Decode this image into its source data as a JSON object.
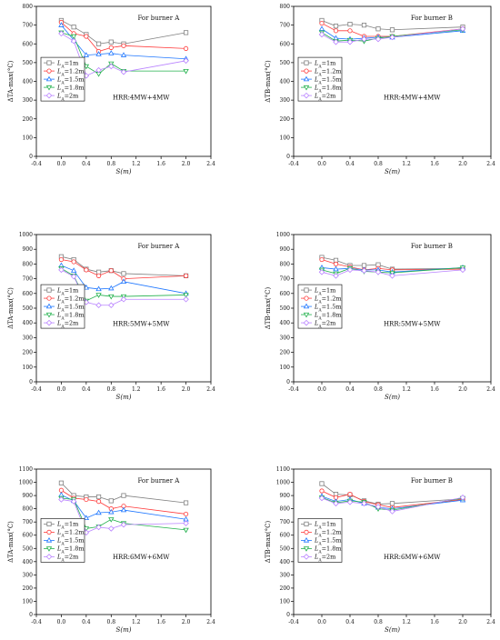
{
  "colors": {
    "LA=1m": "#808080",
    "LA=1.2m": "#ff3b3b",
    "LA=1.5m": "#1f77ff",
    "LA=1.8m": "#22b14c",
    "LA=2m": "#b983ff"
  },
  "legend_labels": [
    "LA=1m",
    "LA=1.2m",
    "LA=1.5m",
    "LA=1.8m",
    "LA=2m"
  ],
  "chart_data": [
    {
      "type": "line",
      "annotation": "For burner A",
      "hrr": "HRR:4MW+4MW",
      "xlabel": "S(m)",
      "ylabel": "ΔTA-max(°C)",
      "xlim": [
        -0.4,
        2.4
      ],
      "ylim": [
        0,
        800
      ],
      "xticks": [
        "-0.4",
        "0.0",
        "0.4",
        "0.8",
        "1.2",
        "1.6",
        "2.0",
        "2.4"
      ],
      "yticks": [
        "0",
        "100",
        "200",
        "300",
        "400",
        "500",
        "600",
        "700",
        "800"
      ],
      "x": [
        0,
        0.2,
        0.4,
        0.6,
        0.8,
        1.0,
        2.0
      ],
      "series": [
        {
          "name": "LA=1m",
          "values": [
            725,
            690,
            650,
            600,
            610,
            600,
            660
          ]
        },
        {
          "name": "LA=1.2m",
          "values": [
            715,
            655,
            640,
            560,
            580,
            590,
            575
          ]
        },
        {
          "name": "LA=1.5m",
          "values": [
            700,
            620,
            540,
            545,
            550,
            540,
            520
          ]
        },
        {
          "name": "LA=1.8m",
          "values": [
            660,
            640,
            480,
            440,
            495,
            455,
            455
          ]
        },
        {
          "name": "LA=2m",
          "values": [
            655,
            615,
            430,
            460,
            480,
            450,
            510
          ]
        }
      ]
    },
    {
      "type": "line",
      "annotation": "For burner B",
      "hrr": "HRR:4MW+4MW",
      "xlabel": "S(m)",
      "ylabel": "ΔTB-max(°C)",
      "xlim": [
        -0.4,
        2.4
      ],
      "ylim": [
        0,
        800
      ],
      "xticks": [
        "-0.4",
        "0.0",
        "0.4",
        "0.8",
        "1.2",
        "1.6",
        "2.0",
        "2.4"
      ],
      "yticks": [
        "0",
        "100",
        "200",
        "300",
        "400",
        "500",
        "600",
        "700",
        "800"
      ],
      "x": [
        0,
        0.2,
        0.4,
        0.6,
        0.8,
        1.0,
        2.0
      ],
      "series": [
        {
          "name": "LA=1m",
          "values": [
            725,
            695,
            705,
            700,
            680,
            675,
            690
          ]
        },
        {
          "name": "LA=1.2m",
          "values": [
            710,
            670,
            670,
            640,
            640,
            640,
            680
          ]
        },
        {
          "name": "LA=1.5m",
          "values": [
            680,
            630,
            625,
            630,
            635,
            635,
            670
          ]
        },
        {
          "name": "LA=1.8m",
          "values": [
            660,
            615,
            620,
            615,
            630,
            640,
            675
          ]
        },
        {
          "name": "LA=2m",
          "values": [
            650,
            610,
            610,
            625,
            625,
            635,
            680
          ]
        }
      ]
    },
    {
      "type": "line",
      "annotation": "For burner A",
      "hrr": "HRR:5MW+5MW",
      "xlabel": "S(m)",
      "ylabel": "ΔTA-max(°C)",
      "xlim": [
        -0.4,
        2.4
      ],
      "ylim": [
        0,
        1000
      ],
      "xticks": [
        "-0.4",
        "0.0",
        "0.4",
        "0.8",
        "1.2",
        "1.6",
        "2.0",
        "2.4"
      ],
      "yticks": [
        "0",
        "100",
        "200",
        "300",
        "400",
        "500",
        "600",
        "700",
        "800",
        "900",
        "1000"
      ],
      "x": [
        0,
        0.2,
        0.4,
        0.6,
        0.8,
        1.0,
        2.0
      ],
      "series": [
        {
          "name": "LA=1m",
          "values": [
            850,
            830,
            765,
            745,
            755,
            735,
            720
          ]
        },
        {
          "name": "LA=1.2m",
          "values": [
            830,
            815,
            760,
            720,
            755,
            700,
            720
          ]
        },
        {
          "name": "LA=1.5m",
          "values": [
            790,
            755,
            640,
            630,
            635,
            680,
            600
          ]
        },
        {
          "name": "LA=1.8m",
          "values": [
            770,
            720,
            550,
            590,
            580,
            580,
            590
          ]
        },
        {
          "name": "LA=2m",
          "values": [
            760,
            715,
            540,
            520,
            520,
            560,
            560
          ]
        }
      ]
    },
    {
      "type": "line",
      "annotation": "For burner B",
      "hrr": "HRR:5MW+5MW",
      "xlabel": "S(m)",
      "ylabel": "ΔTB-max(°C)",
      "xlim": [
        -0.4,
        2.4
      ],
      "ylim": [
        0,
        1000
      ],
      "xticks": [
        "-0.4",
        "0.0",
        "0.4",
        "0.8",
        "1.2",
        "1.6",
        "2.0",
        "2.4"
      ],
      "yticks": [
        "0",
        "100",
        "200",
        "300",
        "400",
        "500",
        "600",
        "700",
        "800",
        "900",
        "1000"
      ],
      "x": [
        0,
        0.2,
        0.4,
        0.6,
        0.8,
        1.0,
        2.0
      ],
      "series": [
        {
          "name": "LA=1m",
          "values": [
            845,
            825,
            790,
            790,
            795,
            765,
            770
          ]
        },
        {
          "name": "LA=1.2m",
          "values": [
            830,
            800,
            780,
            760,
            770,
            760,
            765
          ]
        },
        {
          "name": "LA=1.5m",
          "values": [
            775,
            765,
            770,
            760,
            760,
            745,
            775
          ]
        },
        {
          "name": "LA=1.8m",
          "values": [
            760,
            735,
            770,
            750,
            745,
            740,
            775
          ]
        },
        {
          "name": "LA=2m",
          "values": [
            745,
            720,
            760,
            755,
            745,
            720,
            760
          ]
        }
      ]
    },
    {
      "type": "line",
      "annotation": "For burner A",
      "hrr": "HRR:6MW+6MW",
      "xlabel": "S(m)",
      "ylabel": "ΔTA-max(°C)",
      "xlim": [
        -0.4,
        2.4
      ],
      "ylim": [
        0,
        1100
      ],
      "xticks": [
        "-0.4",
        "0.0",
        "0.4",
        "0.8",
        "1.2",
        "1.6",
        "2.0",
        "2.4"
      ],
      "yticks": [
        "0",
        "100",
        "200",
        "300",
        "400",
        "500",
        "600",
        "700",
        "800",
        "900",
        "1000",
        "1100"
      ],
      "x": [
        0,
        0.2,
        0.4,
        0.6,
        0.8,
        1.0,
        2.0
      ],
      "series": [
        {
          "name": "LA=1m",
          "values": [
            995,
            900,
            890,
            890,
            860,
            900,
            845
          ]
        },
        {
          "name": "LA=1.2m",
          "values": [
            940,
            880,
            870,
            855,
            800,
            820,
            760
          ]
        },
        {
          "name": "LA=1.5m",
          "values": [
            905,
            860,
            730,
            770,
            775,
            790,
            720
          ]
        },
        {
          "name": "LA=1.8m",
          "values": [
            880,
            870,
            650,
            665,
            720,
            690,
            640
          ]
        },
        {
          "name": "LA=2m",
          "values": [
            870,
            855,
            620,
            660,
            650,
            680,
            690
          ]
        }
      ]
    },
    {
      "type": "line",
      "annotation": "For burner B",
      "hrr": "HRR:6MW+6MW",
      "xlabel": "S(m)",
      "ylabel": "ΔTB-max(°C)",
      "xlim": [
        -0.4,
        2.4
      ],
      "ylim": [
        0,
        1100
      ],
      "xticks": [
        "-0.4",
        "0.0",
        "0.4",
        "0.8",
        "1.2",
        "1.6",
        "2.0",
        "2.4"
      ],
      "yticks": [
        "0",
        "100",
        "200",
        "300",
        "400",
        "500",
        "600",
        "700",
        "800",
        "900",
        "1000",
        "1100"
      ],
      "x": [
        0,
        0.2,
        0.4,
        0.6,
        0.8,
        1.0,
        2.0
      ],
      "series": [
        {
          "name": "LA=1m",
          "values": [
            990,
            910,
            905,
            860,
            835,
            840,
            875
          ]
        },
        {
          "name": "LA=1.2m",
          "values": [
            935,
            885,
            910,
            855,
            830,
            810,
            870
          ]
        },
        {
          "name": "LA=1.5m",
          "values": [
            895,
            855,
            870,
            840,
            810,
            800,
            865
          ]
        },
        {
          "name": "LA=1.8m",
          "values": [
            885,
            845,
            860,
            850,
            800,
            790,
            880
          ]
        },
        {
          "name": "LA=2m",
          "values": [
            880,
            840,
            850,
            840,
            815,
            780,
            885
          ]
        }
      ]
    }
  ]
}
